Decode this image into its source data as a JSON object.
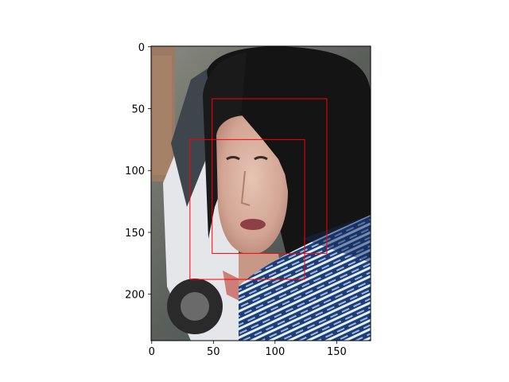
{
  "chart_data": {
    "type": "image",
    "title": "",
    "xlabel": "",
    "ylabel": "",
    "xlim": [
      -0.5,
      177.5
    ],
    "ylim": [
      237.5,
      -0.5
    ],
    "x_ticks": [
      0,
      50,
      100,
      150
    ],
    "y_ticks": [
      0,
      50,
      100,
      150,
      200
    ],
    "image_content": "portrait photo of a woman with dark hair and a blue-and-white patterned scarf, vehicle in background",
    "boxes": [
      {
        "name": "box-1",
        "x0": 49,
        "y0": 42,
        "x1": 142,
        "y1": 167,
        "color": "#ff0000"
      },
      {
        "name": "box-2",
        "x0": 31,
        "y0": 75,
        "x1": 124,
        "y1": 188,
        "color": "#ff0000"
      }
    ]
  }
}
